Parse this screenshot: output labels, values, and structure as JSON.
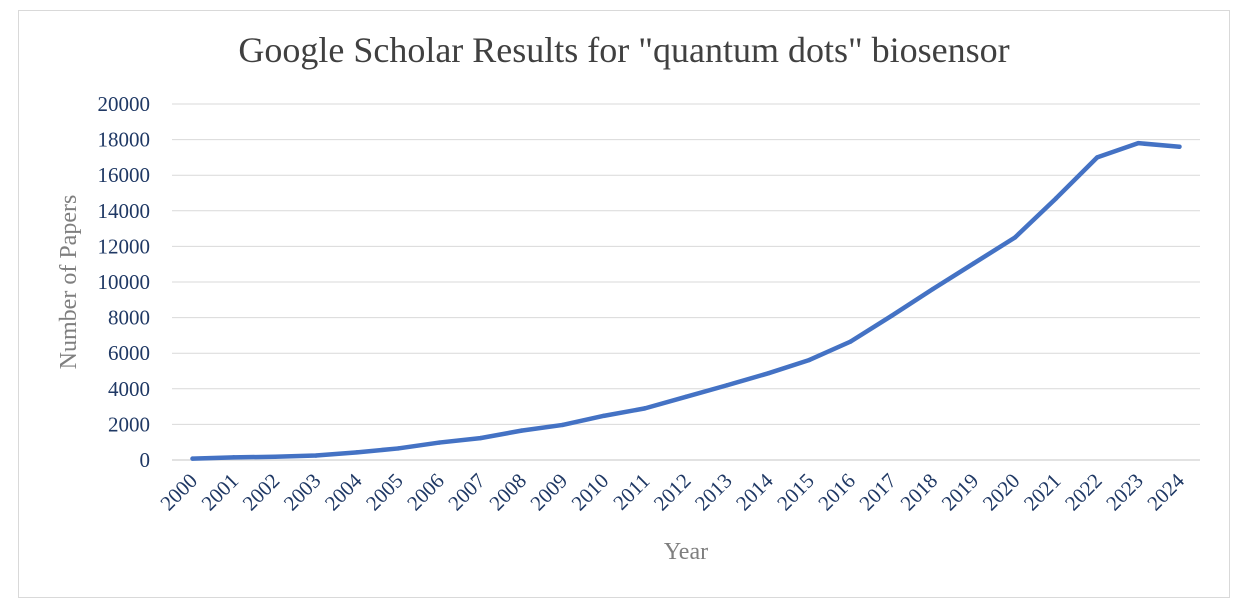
{
  "chart_data": {
    "type": "line",
    "title": "Google Scholar Results for \"quantum dots\" biosensor",
    "xlabel": "Year",
    "ylabel": "Number of Papers",
    "ylim": [
      0,
      20000
    ],
    "y_ticks": [
      "0",
      "2000",
      "4000",
      "6000",
      "8000",
      "10000",
      "12000",
      "14000",
      "16000",
      "18000",
      "20000"
    ],
    "y_tick_values": [
      0,
      2000,
      4000,
      6000,
      8000,
      10000,
      12000,
      14000,
      16000,
      18000,
      20000
    ],
    "grid": true,
    "legend": "none",
    "categories": [
      "2000",
      "2001",
      "2002",
      "2003",
      "2004",
      "2005",
      "2006",
      "2007",
      "2008",
      "2009",
      "2010",
      "2011",
      "2012",
      "2013",
      "2014",
      "2015",
      "2016",
      "2017",
      "2018",
      "2019",
      "2020",
      "2021",
      "2022",
      "2023",
      "2024"
    ],
    "series": [
      {
        "color": "#4472c4",
        "values": [
          80,
          150,
          180,
          250,
          430,
          650,
          980,
          1230,
          1650,
          1970,
          2480,
          2900,
          3550,
          4200,
          4870,
          5620,
          6650,
          8100,
          9600,
          11050,
          12500,
          14700,
          17000,
          17800,
          17600
        ]
      }
    ]
  }
}
